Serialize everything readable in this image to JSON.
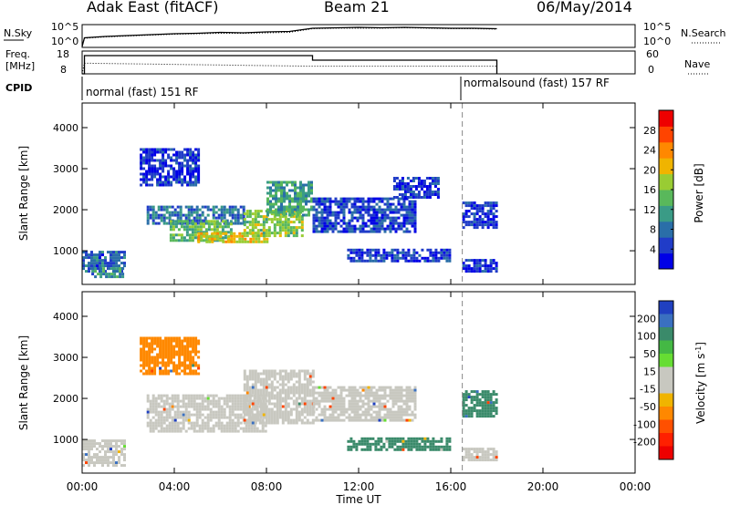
{
  "header": {
    "station": "Adak East (fitACF)",
    "beam": "Beam 21",
    "date": "06/May/2014"
  },
  "panels": {
    "noise": {
      "left_label": "N.Sky",
      "right_label": "N.Search",
      "left_ticks": [
        "10^5",
        "10^0"
      ],
      "right_ticks": [
        "10^5",
        "10^0"
      ]
    },
    "freq": {
      "left_label_1": "Freq.",
      "left_label_2": "[MHz]",
      "left_ticks": [
        "18",
        "8"
      ],
      "right_label": "Nave",
      "right_ticks": [
        "60",
        "0"
      ]
    },
    "cpid": {
      "label": "CPID",
      "segments": [
        {
          "start_hour": 0.0,
          "end_hour": 16.5,
          "text": "normal (fast) 151 RF"
        },
        {
          "start_hour": 16.5,
          "end_hour": 18.0,
          "text": "normalsound (fast) 157 RF"
        }
      ]
    }
  },
  "chart_data": [
    {
      "type": "line",
      "panel": "noise",
      "x": [
        0.0,
        0.1,
        1.0,
        2.0,
        3.0,
        4.0,
        5.0,
        6.0,
        7.0,
        8.0,
        9.0,
        10.0,
        11.0,
        12.0,
        13.0,
        14.0,
        15.0,
        16.0,
        17.0,
        18.0
      ],
      "series": [
        {
          "name": "N.Sky",
          "values": [
            0.2,
            2.1,
            2.4,
            2.6,
            2.8,
            3.0,
            3.1,
            3.3,
            3.2,
            3.4,
            3.5,
            4.2,
            4.3,
            4.4,
            4.3,
            4.4,
            4.3,
            4.2,
            4.2,
            4.1
          ]
        },
        {
          "name": "N.Search",
          "values": [
            0.2,
            2.0,
            2.3,
            2.5,
            2.7,
            2.9,
            3.0,
            3.1,
            3.1,
            3.2,
            3.3,
            4.1,
            4.2,
            4.2,
            4.2,
            4.3,
            4.2,
            4.1,
            4.1,
            4.0
          ]
        }
      ],
      "xlim": [
        0,
        24
      ],
      "ylim": [
        0,
        5
      ],
      "scale": "log"
    },
    {
      "type": "line",
      "panel": "freq",
      "x": [
        0.0,
        0.1,
        10.0,
        16.5,
        18.0
      ],
      "series": [
        {
          "name": "Freq.",
          "values": [
            8,
            16,
            14,
            14,
            14
          ]
        },
        {
          "name": "Nave",
          "values": [
            0,
            28,
            20,
            20,
            20
          ]
        }
      ],
      "xlim": [
        0,
        24
      ],
      "ylim_left": [
        8,
        18
      ],
      "ylim_right": [
        0,
        60
      ]
    },
    {
      "type": "heatmap",
      "panel": "power",
      "ylabel": "Slant Range [km]",
      "ylim": [
        180,
        4600
      ],
      "xlim": [
        0,
        24
      ],
      "yticks": [
        1000,
        2000,
        3000,
        4000
      ],
      "colorbar": {
        "label": "Power [dB]",
        "ticks": [
          4,
          8,
          12,
          16,
          20,
          24,
          28
        ],
        "range": [
          0,
          32
        ],
        "colors": [
          "#0000e6",
          "#203cc8",
          "#2a6ea8",
          "#3a9b86",
          "#59b85b",
          "#99cc33",
          "#f0b400",
          "#ff8800",
          "#ff4400",
          "#ee0000"
        ]
      },
      "regions": [
        {
          "t0": 0.0,
          "t1": 1.8,
          "r0": 500,
          "r1": 1000,
          "level": 7
        },
        {
          "t0": 0.4,
          "t1": 1.8,
          "r0": 350,
          "r1": 600,
          "level": 10
        },
        {
          "t0": 2.5,
          "t1": 5.0,
          "r0": 2600,
          "r1": 3500,
          "level": 4
        },
        {
          "t0": 2.8,
          "t1": 7.0,
          "r0": 1650,
          "r1": 2100,
          "level": 8
        },
        {
          "t0": 3.8,
          "t1": 6.5,
          "r0": 1250,
          "r1": 1750,
          "level": 14
        },
        {
          "t0": 5.0,
          "t1": 8.0,
          "r0": 1200,
          "r1": 1450,
          "level": 20
        },
        {
          "t0": 7.0,
          "t1": 9.5,
          "r0": 1400,
          "r1": 2000,
          "level": 16
        },
        {
          "t0": 8.0,
          "t1": 10.0,
          "r0": 1900,
          "r1": 2700,
          "level": 12
        },
        {
          "t0": 10.0,
          "t1": 14.5,
          "r0": 1500,
          "r1": 2300,
          "level": 5
        },
        {
          "t0": 11.5,
          "t1": 16.0,
          "r0": 750,
          "r1": 1050,
          "level": 5
        },
        {
          "t0": 13.5,
          "t1": 15.5,
          "r0": 2300,
          "r1": 2800,
          "level": 4
        },
        {
          "t0": 16.5,
          "t1": 18.0,
          "r0": 1600,
          "r1": 2200,
          "level": 5
        },
        {
          "t0": 16.5,
          "t1": 18.0,
          "r0": 500,
          "r1": 800,
          "level": 4
        }
      ]
    },
    {
      "type": "heatmap",
      "panel": "velocity",
      "ylabel": "Slant Range [km]",
      "xlabel": "Time UT",
      "ylim": [
        180,
        4600
      ],
      "xlim": [
        0,
        24
      ],
      "yticks": [
        1000,
        2000,
        3000,
        4000
      ],
      "xticks": [
        "00:00",
        "04:00",
        "08:00",
        "12:00",
        "16:00",
        "20:00",
        "00:00"
      ],
      "colorbar": {
        "label": "Velocity [m s^-1]",
        "ticks": [
          "200",
          "100",
          "50",
          "15",
          "-15",
          "-50",
          "-100",
          "-200"
        ],
        "colors": [
          "#2040c0",
          "#3a70c0",
          "#3a8a6a",
          "#44b844",
          "#66dd33",
          "#c8c8c0",
          "#c8c8c0",
          "#f0b400",
          "#ff8800",
          "#ff5000",
          "#ff2000",
          "#ee0000"
        ]
      },
      "regions": [
        {
          "t0": 0.0,
          "t1": 1.8,
          "r0": 350,
          "r1": 1000,
          "vel": 0
        },
        {
          "t0": 2.5,
          "t1": 5.0,
          "r0": 2600,
          "r1": 3500,
          "vel": -60
        },
        {
          "t0": 2.8,
          "t1": 8.0,
          "r0": 1200,
          "r1": 2100,
          "vel": 0
        },
        {
          "t0": 7.0,
          "t1": 10.0,
          "r0": 1400,
          "r1": 2700,
          "vel": 0
        },
        {
          "t0": 10.0,
          "t1": 14.5,
          "r0": 1500,
          "r1": 2300,
          "vel": 0
        },
        {
          "t0": 11.5,
          "t1": 16.0,
          "r0": 750,
          "r1": 1050,
          "vel": 40
        },
        {
          "t0": 16.5,
          "t1": 18.0,
          "r0": 1600,
          "r1": 2200,
          "vel": 40
        },
        {
          "t0": 16.5,
          "t1": 18.0,
          "r0": 500,
          "r1": 800,
          "vel": 0
        }
      ]
    }
  ]
}
